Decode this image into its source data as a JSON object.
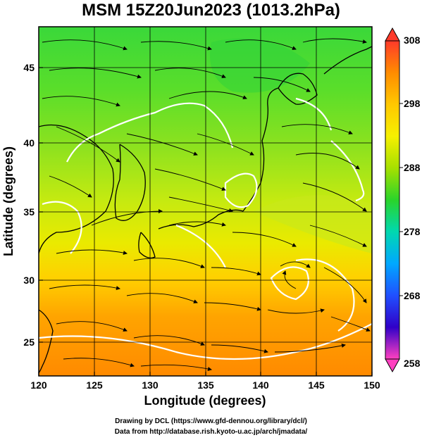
{
  "title": "MSM 15Z20Jun2023 (1013.2hPa)",
  "x_axis": {
    "label": "Longitude (degrees)",
    "range": [
      120,
      150
    ],
    "ticks": [
      "120",
      "125",
      "130",
      "135",
      "140",
      "145",
      "150"
    ]
  },
  "y_axis": {
    "label": "Latitude  (degrees)",
    "range": [
      22.4,
      47.6
    ],
    "ticks": [
      "25",
      "30",
      "35",
      "40",
      "45"
    ]
  },
  "colorbar": {
    "range": [
      258,
      308
    ],
    "labels": [
      "308",
      "298",
      "288",
      "278",
      "268",
      "258"
    ],
    "colors": [
      "#e6f0ff",
      "#ff3a2a",
      "#ff8c00",
      "#ffc800",
      "#f6f000",
      "#a6e000",
      "#2ad42a",
      "#00d8b0",
      "#00a8ff",
      "#2050ff",
      "#3000c8",
      "#8a00c8",
      "#ff40c0",
      "#ffb4e6"
    ]
  },
  "credits": [
    "Drawing by DCL (https://www.gfd-dennou.org/library/dcl/)",
    "Data from http://database.rish.kyoto-u.ac.jp/arch/jmadata/"
  ]
}
